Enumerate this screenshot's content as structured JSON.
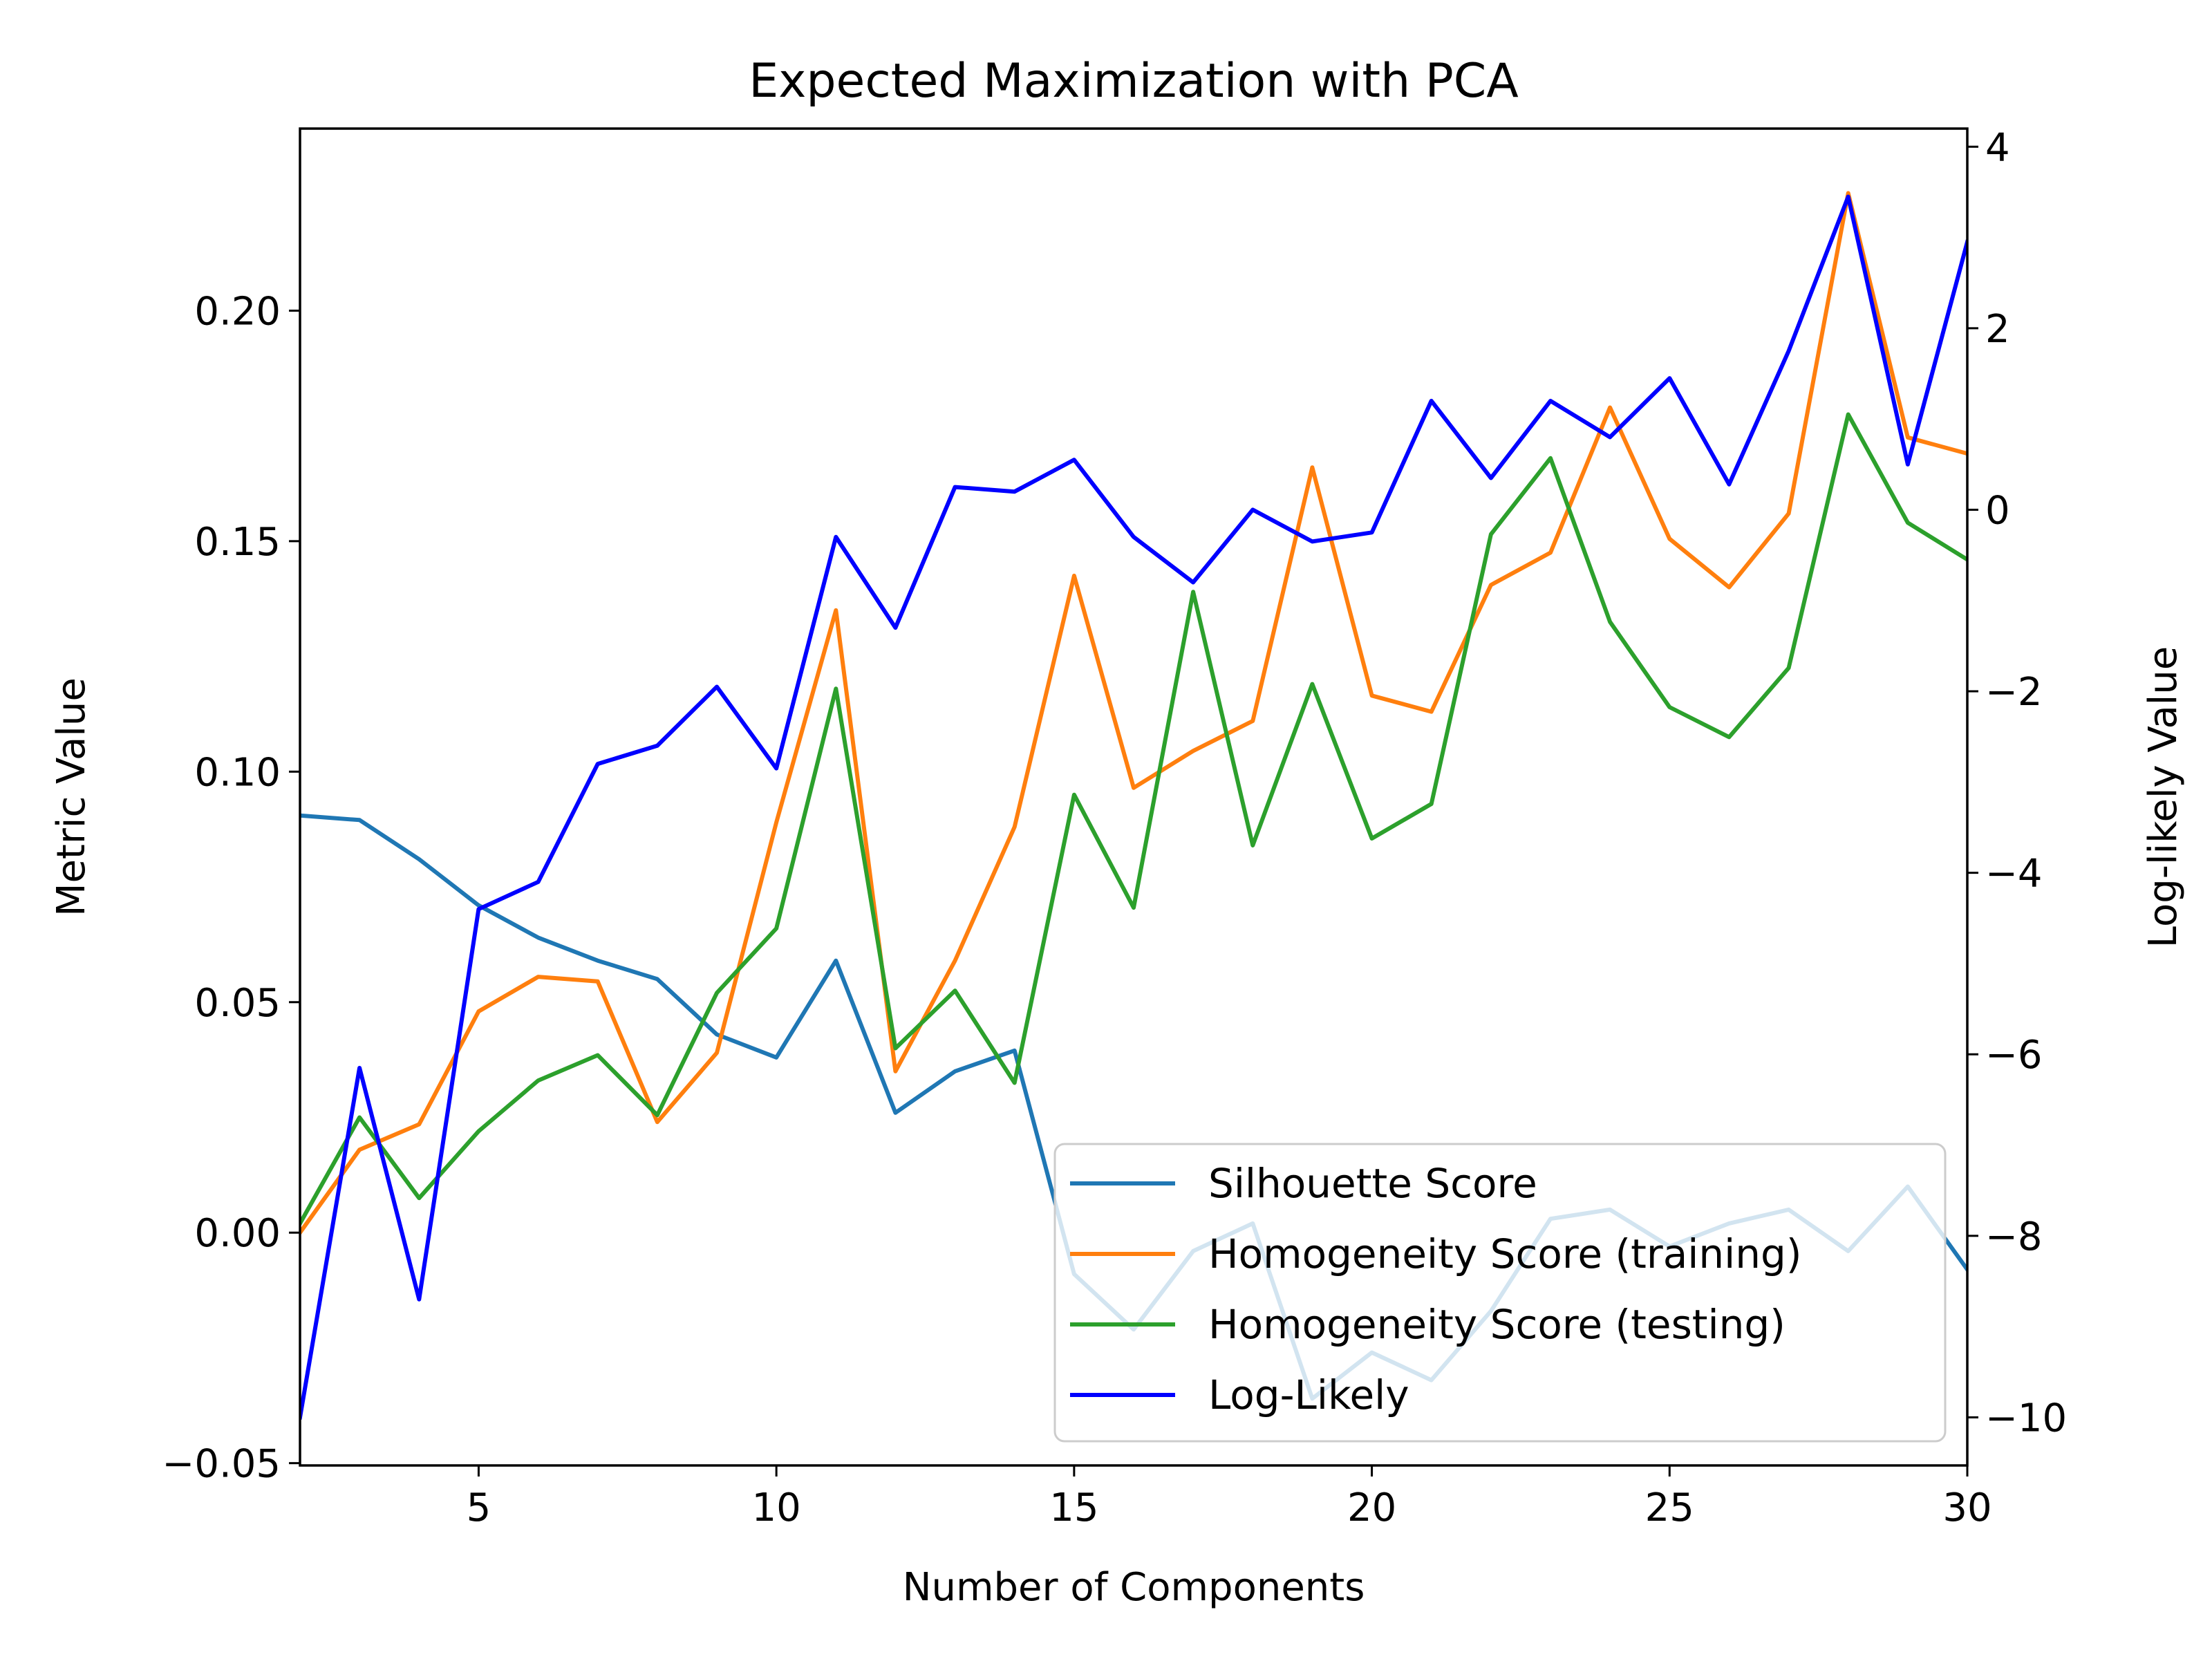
{
  "chart_data": {
    "type": "line",
    "title": "Expected Maximization with PCA",
    "xlabel": "Number of Components",
    "ylabel": "Metric Value",
    "y2label": "Log-likely Value",
    "x": [
      2,
      3,
      4,
      5,
      6,
      7,
      8,
      9,
      10,
      11,
      12,
      13,
      14,
      15,
      16,
      17,
      18,
      19,
      20,
      21,
      22,
      23,
      24,
      25,
      26,
      27,
      28,
      29,
      30
    ],
    "xlim": [
      2,
      30
    ],
    "ylim": [
      -0.0505,
      0.2395
    ],
    "y2lim": [
      -10.53,
      4.2
    ],
    "xticks": [
      5,
      10,
      15,
      20,
      25,
      30
    ],
    "xtick_labels": [
      "5",
      "10",
      "15",
      "20",
      "25",
      "30"
    ],
    "yticks": [
      -0.05,
      0,
      0.05,
      0.1,
      0.15,
      0.2
    ],
    "ytick_labels": [
      "−0.05",
      "0.00",
      "0.05",
      "0.10",
      "0.15",
      "0.20"
    ],
    "y2ticks": [
      -10,
      -8,
      -6,
      -4,
      -2,
      0,
      2,
      4
    ],
    "y2tick_labels": [
      "−10",
      "−8",
      "−6",
      "−4",
      "−2",
      "0",
      "2",
      "4"
    ],
    "grid": false,
    "legend_position": "lower-right",
    "series": [
      {
        "name": "Silhouette Score",
        "axis": "left",
        "color": "#1f77b4",
        "values": [
          0.0905,
          0.0895,
          0.081,
          0.071,
          0.064,
          0.059,
          0.055,
          0.043,
          0.038,
          0.059,
          0.026,
          0.035,
          0.0395,
          -0.009,
          -0.021,
          -0.004,
          0.002,
          -0.036,
          -0.026,
          -0.032,
          -0.017,
          0.003,
          0.005,
          -0.003,
          0.002,
          0.005,
          -0.004,
          0.01,
          -0.008
        ]
      },
      {
        "name": "Homogeneity Score (training)",
        "axis": "left",
        "color": "#ff7f0e",
        "values": [
          0.0,
          0.018,
          0.0235,
          0.048,
          0.0555,
          0.0545,
          0.024,
          0.039,
          0.089,
          0.135,
          0.035,
          0.059,
          0.088,
          0.1425,
          0.0965,
          0.1045,
          0.111,
          0.166,
          0.1165,
          0.113,
          0.1405,
          0.1475,
          0.179,
          0.1505,
          0.14,
          0.156,
          0.2255,
          0.1725,
          0.169
        ]
      },
      {
        "name": "Homogeneity Score (testing)",
        "axis": "left",
        "color": "#2ca02c",
        "values": [
          0.002,
          0.025,
          0.0075,
          0.022,
          0.033,
          0.0385,
          0.0255,
          0.052,
          0.066,
          0.118,
          0.04,
          0.0525,
          0.0325,
          0.095,
          0.0705,
          0.139,
          0.084,
          0.119,
          0.0855,
          0.093,
          0.1515,
          0.168,
          0.1325,
          0.114,
          0.1075,
          0.1225,
          0.1775,
          0.154,
          0.146
        ]
      },
      {
        "name": "Log-Likely",
        "axis": "right",
        "color": "#0000ff",
        "values": [
          -10.0,
          -6.15,
          -8.7,
          -4.4,
          -4.1,
          -2.8,
          -2.6,
          -1.95,
          -2.85,
          -0.3,
          -1.3,
          0.25,
          0.2,
          0.55,
          -0.3,
          -0.8,
          0.0,
          -0.35,
          -0.25,
          1.2,
          0.35,
          1.2,
          0.8,
          1.45,
          0.28,
          1.75,
          3.45,
          0.5,
          2.95
        ]
      }
    ]
  }
}
